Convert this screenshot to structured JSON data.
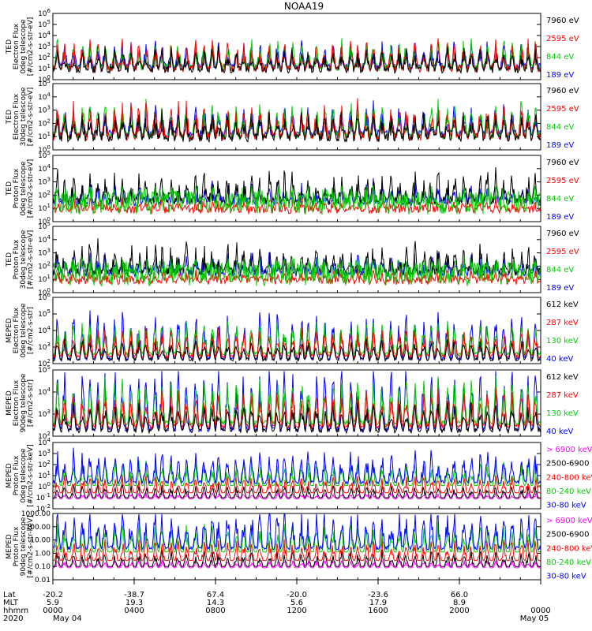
{
  "title": "NOAA19",
  "chart_data": [
    {
      "type": "line",
      "ylabel_lines": [
        "TED",
        "Electron Flux",
        "0deg telescope",
        "[#/cm2-s-str-eV]"
      ],
      "y_tick_labels": [
        "10^0",
        "10^1",
        "10^2",
        "10^3",
        "10^4",
        "10^5",
        "10^6"
      ],
      "ylim_log10": [
        0,
        6
      ],
      "legend": [
        {
          "label": "7960 eV",
          "color": "#000000"
        },
        {
          "label": "2595 eV",
          "color": "#ff0000"
        },
        {
          "label": "844 eV",
          "color": "#00cc00"
        },
        {
          "label": "189 eV",
          "color": "#0000ff"
        }
      ]
    },
    {
      "type": "line",
      "ylabel_lines": [
        "TED",
        "Electron Flux",
        "30deg telescope",
        "[#/cm2-s-str-eV]"
      ],
      "y_tick_labels": [
        "10^0",
        "10^1",
        "10^2",
        "10^3",
        "10^4",
        "10^5"
      ],
      "ylim_log10": [
        0,
        5
      ],
      "legend": [
        {
          "label": "7960 eV",
          "color": "#000000"
        },
        {
          "label": "2595 eV",
          "color": "#ff0000"
        },
        {
          "label": "844 eV",
          "color": "#00cc00"
        },
        {
          "label": "189 eV",
          "color": "#0000ff"
        }
      ]
    },
    {
      "type": "line",
      "ylabel_lines": [
        "TED",
        "Proton Flux",
        "0deg telescope",
        "[#/cm2-s-str-eV]"
      ],
      "y_tick_labels": [
        "10^0",
        "10^1",
        "10^2",
        "10^3",
        "10^4",
        "10^5"
      ],
      "ylim_log10": [
        0,
        5
      ],
      "legend": [
        {
          "label": "7960 eV",
          "color": "#000000"
        },
        {
          "label": "2595 eV",
          "color": "#ff0000"
        },
        {
          "label": "844 eV",
          "color": "#00cc00"
        },
        {
          "label": "189 eV",
          "color": "#0000ff"
        }
      ]
    },
    {
      "type": "line",
      "ylabel_lines": [
        "TED",
        "Proton Flux",
        "30deg telescope",
        "[#/cm2-s-str-eV]"
      ],
      "y_tick_labels": [
        "10^0",
        "10^1",
        "10^2",
        "10^3",
        "10^4",
        "10^5"
      ],
      "ylim_log10": [
        0,
        5
      ],
      "legend": [
        {
          "label": "7960 eV",
          "color": "#000000"
        },
        {
          "label": "2595 eV",
          "color": "#ff0000"
        },
        {
          "label": "844 eV",
          "color": "#00cc00"
        },
        {
          "label": "189 eV",
          "color": "#0000ff"
        }
      ]
    },
    {
      "type": "line",
      "ylabel_lines": [
        "MEPED",
        "Electron Flux",
        "0deg telescope",
        "[#/cm2-s-str]"
      ],
      "y_tick_labels": [
        "10^2",
        "10^3",
        "10^4",
        "10^5",
        "10^6"
      ],
      "ylim_log10": [
        2,
        6
      ],
      "legend": [
        {
          "label": "612 keV",
          "color": "#000000"
        },
        {
          "label": "287 keV",
          "color": "#ff0000"
        },
        {
          "label": "130 keV",
          "color": "#00cc00"
        },
        {
          "label": "40 keV",
          "color": "#0000ff"
        }
      ]
    },
    {
      "type": "line",
      "ylabel_lines": [
        "MEPED",
        "Electron Flux",
        "90deg telescope",
        "[#/cm2-s-str]"
      ],
      "y_tick_labels": [
        "10^2",
        "10^3",
        "10^4",
        "10^5"
      ],
      "ylim_log10": [
        2,
        5
      ],
      "legend": [
        {
          "label": "612 keV",
          "color": "#000000"
        },
        {
          "label": "287 keV",
          "color": "#ff0000"
        },
        {
          "label": "130 keV",
          "color": "#00cc00"
        },
        {
          "label": "40 keV",
          "color": "#0000ff"
        }
      ]
    },
    {
      "type": "line",
      "ylabel_lines": [
        "MEPED",
        "Proton Flux",
        "0deg telescope",
        "[#/cm2-s-str-keV]"
      ],
      "y_tick_labels": [
        "10^-2",
        "10^-1",
        "10^0",
        "10^1",
        "10^2",
        "10^3",
        "10^4"
      ],
      "ylim_log10": [
        -2,
        4
      ],
      "legend": [
        {
          "label": "> 6900 keV",
          "color": "#ff00ff"
        },
        {
          "label": "2500-6900",
          "color": "#000000"
        },
        {
          "label": "240-800 keV",
          "color": "#ff0000"
        },
        {
          "label": "80-240 keV",
          "color": "#00cc00"
        },
        {
          "label": "30-80 keV",
          "color": "#0000ff"
        }
      ]
    },
    {
      "type": "line",
      "ylabel_lines": [
        "MEPED",
        "Proton Flux",
        "90deg telescope",
        "[#/cm2-s-str-keV]"
      ],
      "y_tick_labels": [
        "0.01",
        "0.10",
        "1.00",
        "10.00",
        "100.00",
        "1000.00"
      ],
      "ylim_log10": [
        -2,
        3
      ],
      "legend": [
        {
          "label": "> 6900 keV",
          "color": "#ff00ff"
        },
        {
          "label": "2500-6900",
          "color": "#000000"
        },
        {
          "label": "240-800 keV",
          "color": "#ff0000"
        },
        {
          "label": "80-240 keV",
          "color": "#00cc00"
        },
        {
          "label": "30-80 keV",
          "color": "#0000ff"
        }
      ]
    }
  ],
  "x_axis": {
    "row_labels": [
      "Lat",
      "MLT",
      "hhmm",
      "2020"
    ],
    "ticks": [
      {
        "lat": "-20.2",
        "mlt": "5.9",
        "hhmm": "0000",
        "date": "May 04"
      },
      {
        "lat": "-38.7",
        "mlt": "19.3",
        "hhmm": "0400",
        "date": ""
      },
      {
        "lat": "67.4",
        "mlt": "14.3",
        "hhmm": "0800",
        "date": ""
      },
      {
        "lat": "-20.0",
        "mlt": "5.6",
        "hhmm": "1200",
        "date": ""
      },
      {
        "lat": "-23.6",
        "mlt": "17.9",
        "hhmm": "1600",
        "date": ""
      },
      {
        "lat": "66.0",
        "mlt": "8.9",
        "hhmm": "2000",
        "date": ""
      },
      {
        "lat": "",
        "mlt": "",
        "hhmm": "0000",
        "date": "May 05"
      }
    ]
  }
}
